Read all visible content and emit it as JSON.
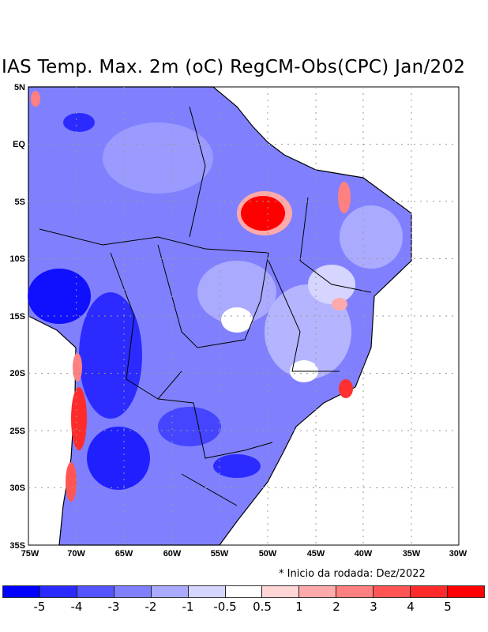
{
  "title": "IAS Temp. Max. 2m (oC) RegCM-Obs(CPC) Jan/202",
  "lat_labels": [
    "5N",
    "EQ",
    "5S",
    "10S",
    "15S",
    "20S",
    "25S",
    "30S",
    "35S"
  ],
  "lon_labels": [
    "75W",
    "70W",
    "65W",
    "60W",
    "55W",
    "50W",
    "45W",
    "40W",
    "35W",
    "30W"
  ],
  "note": "* Inicio da rodada: Dez/2022",
  "colorbar": {
    "colors": [
      "#0000ff",
      "#2b2bff",
      "#5555ff",
      "#8080ff",
      "#aaaaff",
      "#d5d5ff",
      "#ffffff",
      "#ffd5d5",
      "#ffaaaa",
      "#ff8080",
      "#ff5555",
      "#ff2b2b",
      "#ff0000"
    ],
    "labels": [
      "-5",
      "-4",
      "-3",
      "-2",
      "-1",
      "-0.5",
      "0.5",
      "1",
      "2",
      "3",
      "4",
      "5"
    ]
  }
}
